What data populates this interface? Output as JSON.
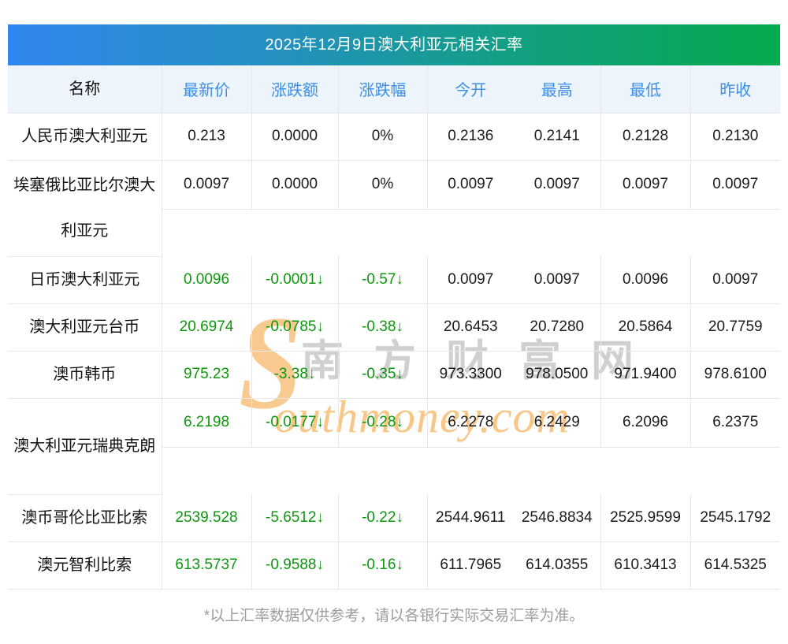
{
  "title": "2025年12月9日澳大利亚元相关汇率",
  "columns": [
    "名称",
    "最新价",
    "涨跌额",
    "涨跌幅",
    "今开",
    "最高",
    "最低",
    "昨收"
  ],
  "rows": [
    {
      "name": "人民币澳大利亚元",
      "latest": "0.213",
      "change": "0.0000",
      "pct": "0%",
      "open": "0.2136",
      "high": "0.2141",
      "low": "0.2128",
      "prev": "0.2130",
      "trend": "flat",
      "wrapped": false
    },
    {
      "name": "埃塞俄比亚比尔澳大利亚元",
      "latest": "0.0097",
      "change": "0.0000",
      "pct": "0%",
      "open": "0.0097",
      "high": "0.0097",
      "low": "0.0097",
      "prev": "0.0097",
      "trend": "flat",
      "wrapped": true
    },
    {
      "name": "日币澳大利亚元",
      "latest": "0.0096",
      "change": "-0.0001↓",
      "pct": "-0.57↓",
      "open": "0.0097",
      "high": "0.0097",
      "low": "0.0096",
      "prev": "0.0097",
      "trend": "down",
      "wrapped": false
    },
    {
      "name": "澳大利亚元台币",
      "latest": "20.6974",
      "change": "-0.0785↓",
      "pct": "-0.38↓",
      "open": "20.6453",
      "high": "20.7280",
      "low": "20.5864",
      "prev": "20.7759",
      "trend": "down",
      "wrapped": false
    },
    {
      "name": "澳币韩币",
      "latest": "975.23",
      "change": "-3.38↓",
      "pct": "-0.35↓",
      "open": "973.3300",
      "high": "978.0500",
      "low": "971.9400",
      "prev": "978.6100",
      "trend": "down",
      "wrapped": false
    },
    {
      "name": "澳大利亚元瑞典克朗",
      "latest": "6.2198",
      "change": "-0.0177↓",
      "pct": "-0.28↓",
      "open": "6.2278",
      "high": "6.2429",
      "low": "6.2096",
      "prev": "6.2375",
      "trend": "down",
      "wrapped": true
    },
    {
      "name": "澳币哥伦比亚比索",
      "latest": "2539.528",
      "change": "-5.6512↓",
      "pct": "-0.22↓",
      "open": "2544.9611",
      "high": "2546.8834",
      "low": "2525.9599",
      "prev": "2545.1792",
      "trend": "down",
      "wrapped": false
    },
    {
      "name": "澳元智利比索",
      "latest": "613.5737",
      "change": "-0.9588↓",
      "pct": "-0.16↓",
      "open": "611.7965",
      "high": "614.0355",
      "low": "610.3413",
      "prev": "614.5325",
      "trend": "down",
      "wrapped": false
    }
  ],
  "watermark": {
    "s": "S",
    "cn": "南方财富网",
    "en": "outhmoney.com"
  },
  "footer": "*以上汇率数据仅供参考，请以各银行实际交易汇率为准。",
  "colors": {
    "title_gradient_start": "#3187ee",
    "title_gradient_end": "#04aa4e",
    "header_bg": "#eef4fc",
    "header_text": "#3a8ee8",
    "down_green": "#0e960e",
    "border": "#e7e7e7",
    "watermark_orange": "#f7c17b",
    "footer_text": "#9c9c9c"
  }
}
